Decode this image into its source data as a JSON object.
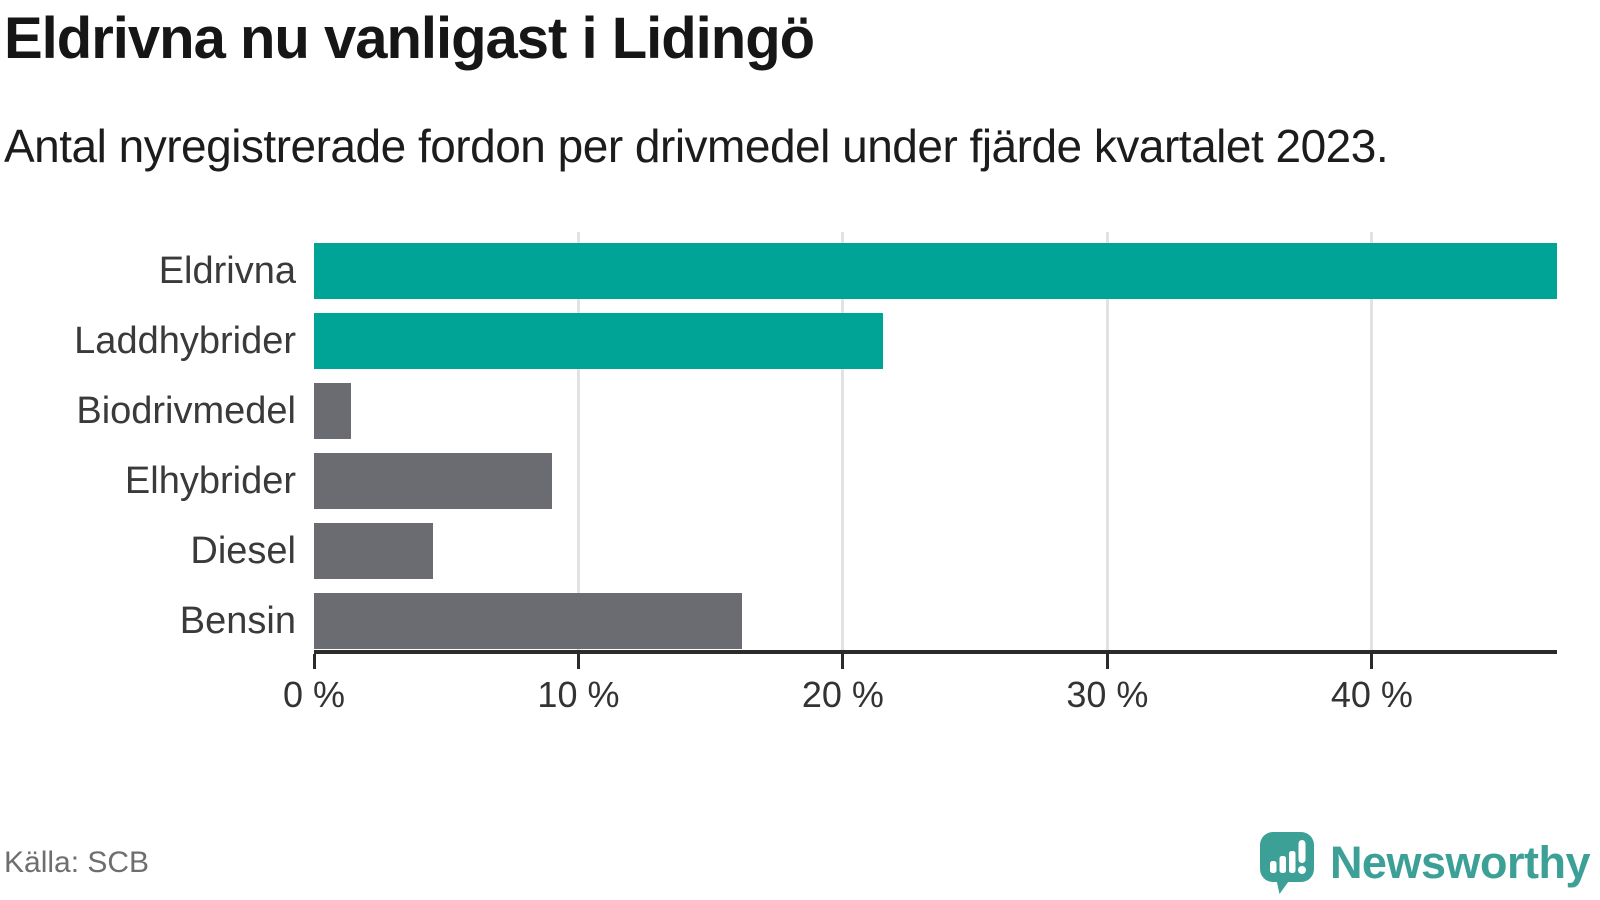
{
  "header": {
    "title": "Eldrivna nu vanligast i Lidingö",
    "subtitle": "Antal nyregistrerade fordon per drivmedel under fjärde kvartalet 2023."
  },
  "chart_data": {
    "type": "bar",
    "orientation": "horizontal",
    "title": "Eldrivna nu vanligast i Lidingö",
    "categories": [
      "Eldrivna",
      "Laddhybrider",
      "Biodrivmedel",
      "Elhybrider",
      "Diesel",
      "Bensin"
    ],
    "values": [
      47.0,
      21.5,
      1.4,
      9.0,
      4.5,
      16.2
    ],
    "unit": "%",
    "bar_colors": [
      "#00a496",
      "#00a496",
      "#6b6b72",
      "#6b6b72",
      "#6b6b72",
      "#6b6b72"
    ],
    "highlight_color": "#00a496",
    "default_color": "#6b6b72",
    "xlabel": "",
    "ylabel": "",
    "xlim": [
      0,
      47
    ],
    "xticks": [
      0,
      10,
      20,
      30,
      40
    ],
    "xtick_labels": [
      "0 %",
      "10 %",
      "20 %",
      "30 %",
      "40 %"
    ],
    "grid": "vertical",
    "gridline_color": "#e2e2e2",
    "legend": "none"
  },
  "footer": {
    "source": "Källa: SCB",
    "brand": "Newsworthy",
    "brand_color": "#3da096"
  }
}
